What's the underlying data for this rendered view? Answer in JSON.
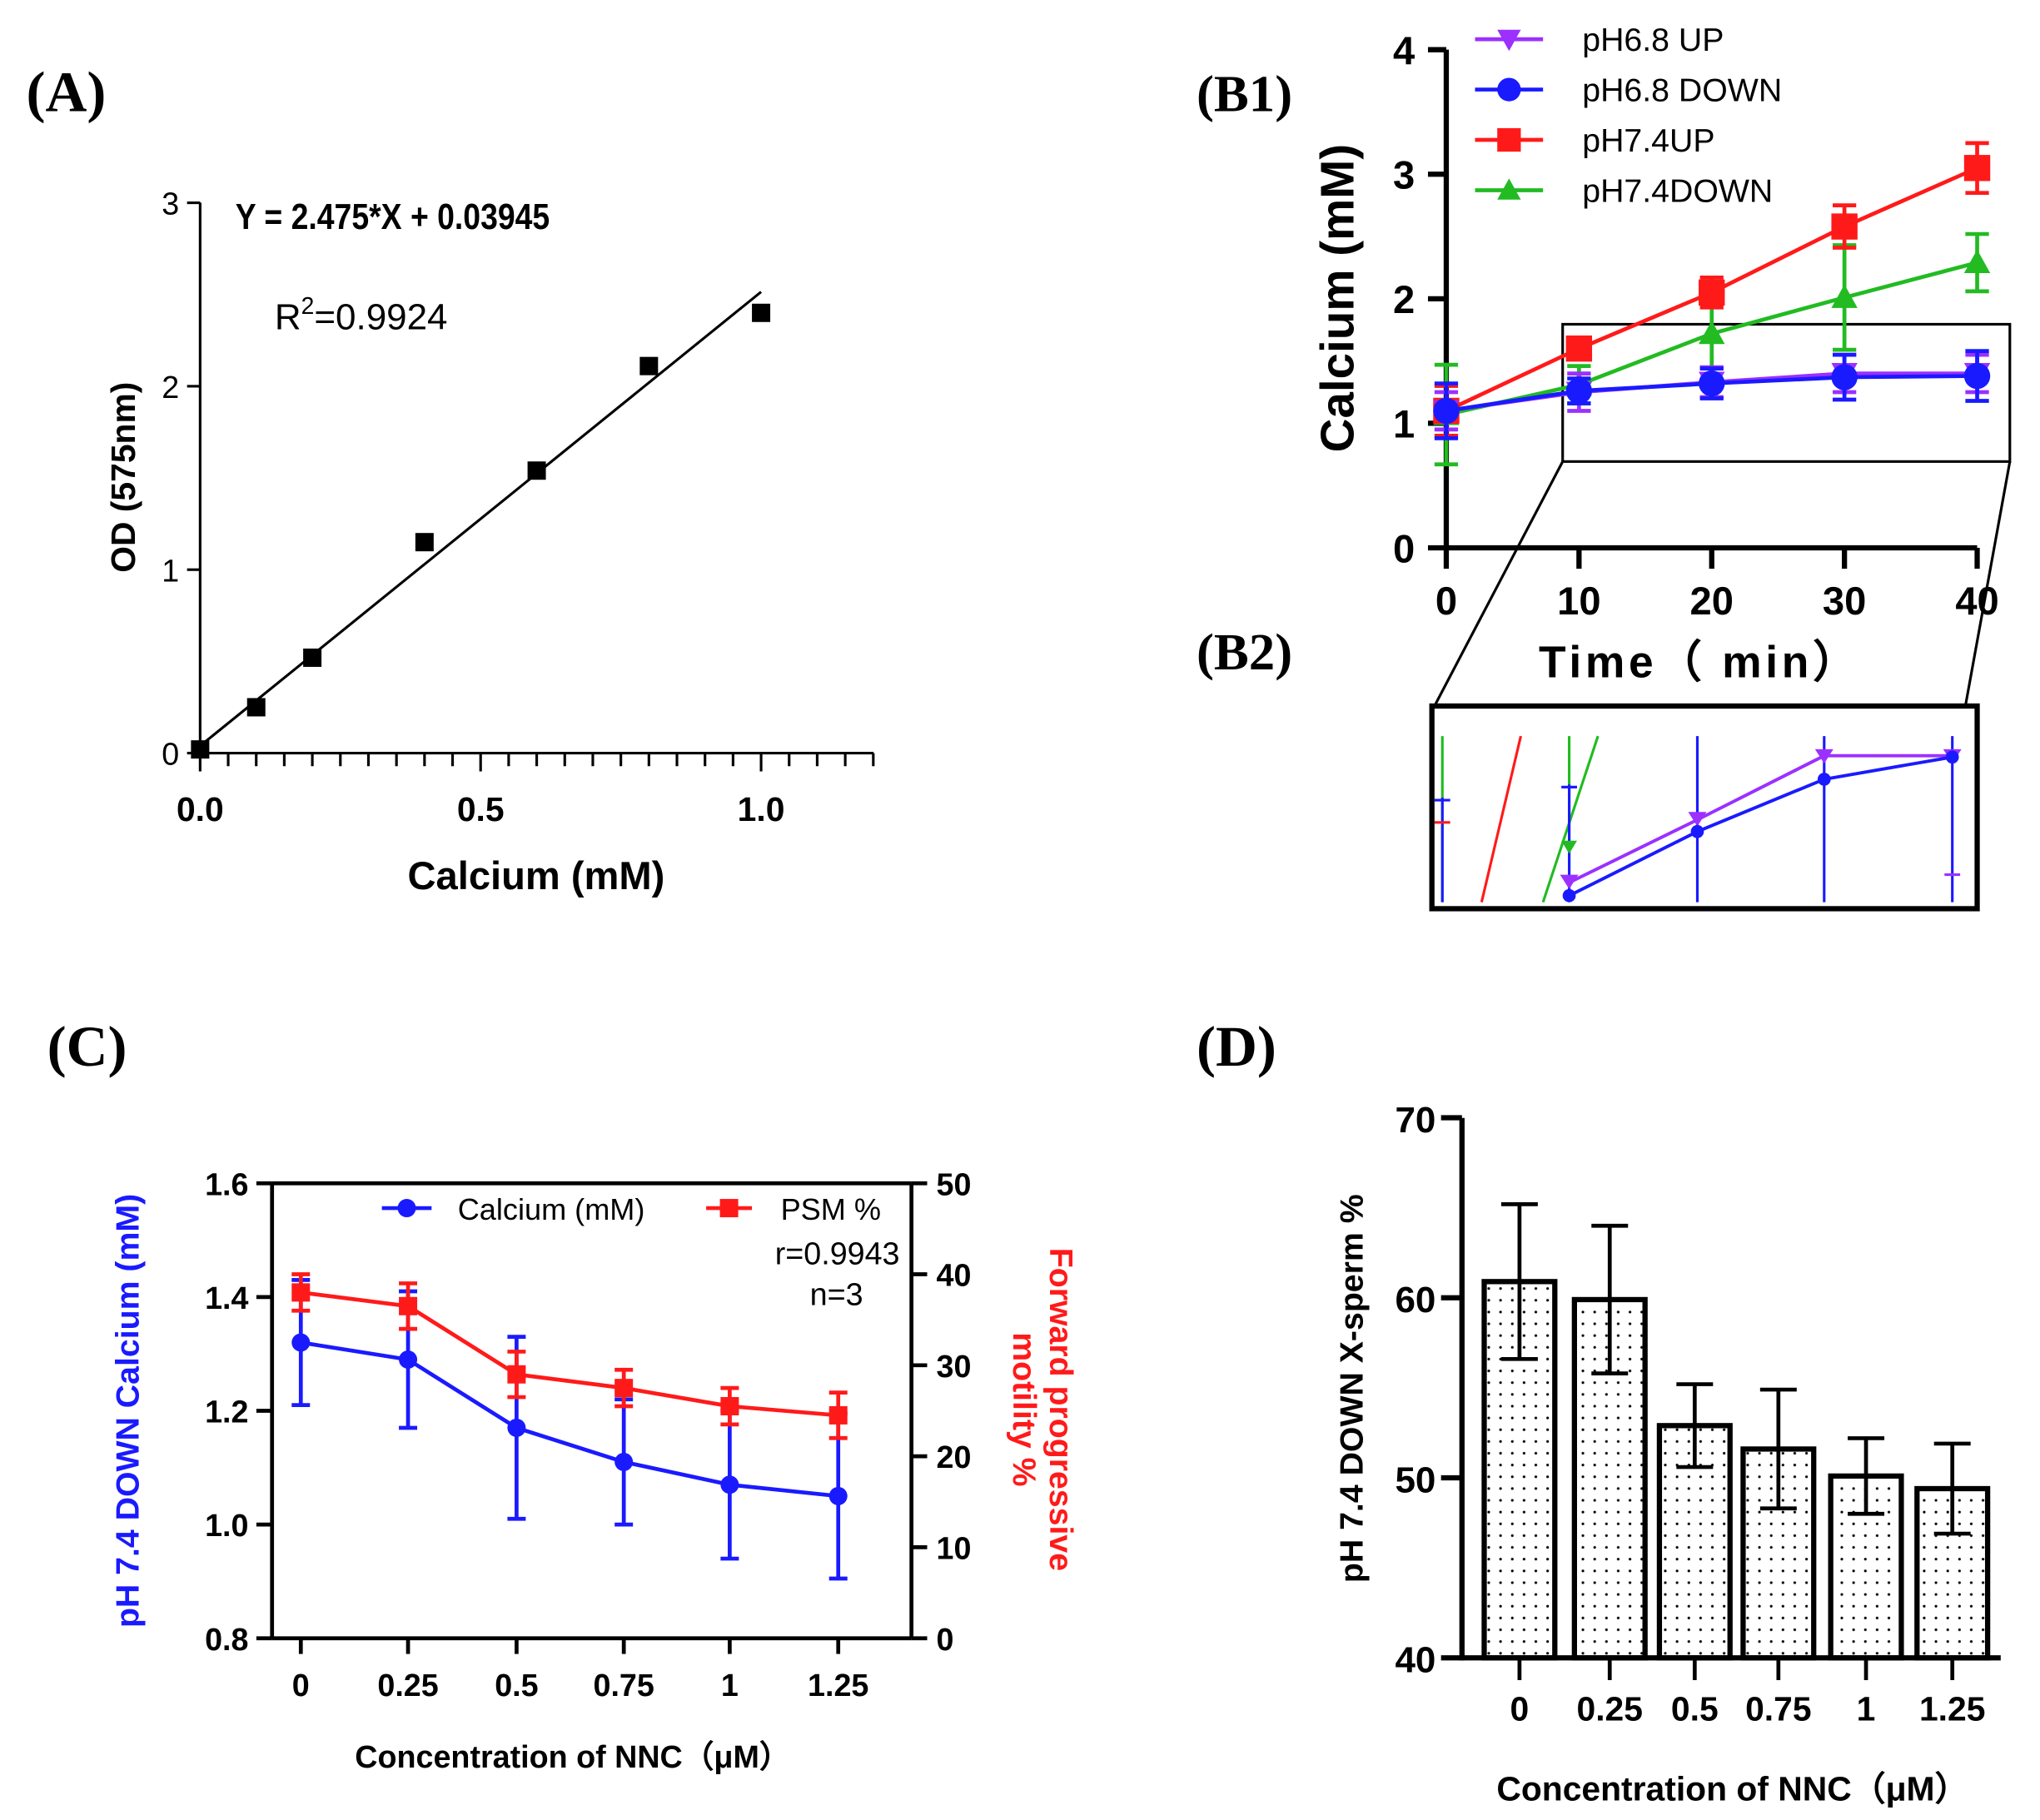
{
  "panel_labels": {
    "a": "(A)",
    "b1": "(B1)",
    "b2": "(B2)",
    "c": "(C)",
    "d": "(D)"
  },
  "colors": {
    "purple": "#9b30ff",
    "blue": "#1a1aff",
    "red": "#ff1a1a",
    "green": "#22bb22",
    "black": "#000000"
  },
  "chart_data": [
    {
      "id": "A",
      "type": "scatter",
      "xlabel": "Calcium (mM)",
      "ylabel": "OD (575nm)",
      "xlim": [
        0,
        1.2
      ],
      "ylim": [
        0,
        3
      ],
      "xticks": [
        "0.0",
        "0.5",
        "1.0"
      ],
      "yticks": [
        "0",
        "1",
        "2",
        "3"
      ],
      "x": [
        0,
        0.1,
        0.2,
        0.4,
        0.6,
        0.8,
        1.0
      ],
      "y": [
        0.02,
        0.25,
        0.52,
        1.15,
        1.54,
        2.11,
        2.4
      ],
      "fit": {
        "slope": 2.475,
        "intercept": 0.03945
      },
      "annotations": {
        "equation": "Y = 2.475*X + 0.03945",
        "r2_prefix": "R",
        "r2_sup": "2",
        "r2_value": "=0.9924"
      }
    },
    {
      "id": "B1",
      "type": "line",
      "xlabel": "Time（ min）",
      "ylabel": "Calcium (mM)",
      "xlim": [
        0,
        40
      ],
      "ylim": [
        0,
        4
      ],
      "xticks": [
        "0",
        "10",
        "20",
        "30",
        "40"
      ],
      "yticks": [
        "0",
        "1",
        "2",
        "3",
        "4"
      ],
      "x": [
        0,
        10,
        20,
        30,
        40
      ],
      "series": [
        {
          "name": "pH6.8 UP",
          "color": "#9b30ff",
          "marker": "triangle-down",
          "values": [
            1.1,
            1.25,
            1.33,
            1.4,
            1.4
          ],
          "err": [
            0.15,
            0.15,
            0.12,
            0.15,
            0.15
          ]
        },
        {
          "name": "pH6.8 DOWN",
          "color": "#1a1aff",
          "marker": "circle",
          "values": [
            1.1,
            1.26,
            1.32,
            1.37,
            1.38
          ],
          "err": [
            0.22,
            0.1,
            0.12,
            0.18,
            0.2
          ]
        },
        {
          "name": "pH7.4UP",
          "color": "#ff1a1a",
          "marker": "square",
          "values": [
            1.1,
            1.6,
            2.05,
            2.58,
            3.05
          ],
          "err": [
            0.2,
            0.05,
            0.12,
            0.17,
            0.2
          ]
        },
        {
          "name": "pH7.4DOWN",
          "color": "#22bb22",
          "marker": "triangle-up",
          "values": [
            1.07,
            1.31,
            1.72,
            2.01,
            2.29
          ],
          "err": [
            0.4,
            0.15,
            0.4,
            0.42,
            0.23
          ]
        }
      ],
      "legend": "top"
    },
    {
      "id": "C",
      "type": "line",
      "xlabel": "Concentration of NNC（μM）",
      "ylabel": "pH 7.4 DOWN Calcium (mM)",
      "ylabel_right": [
        "Forward progressive",
        "motility %"
      ],
      "categories": [
        "0",
        "0.25",
        "0.5",
        "0.75",
        "1",
        "1.25"
      ],
      "ylim": [
        0.8,
        1.6
      ],
      "ylim_right": [
        0,
        50
      ],
      "yticks": [
        "0.8",
        "1.0",
        "1.2",
        "1.4",
        "1.6"
      ],
      "yticks_right": [
        "0",
        "10",
        "20",
        "30",
        "40",
        "50"
      ],
      "series": [
        {
          "name": "Calcium (mM)",
          "axis": "left",
          "color": "#1a1aff",
          "values": [
            1.32,
            1.29,
            1.17,
            1.11,
            1.07,
            1.05
          ],
          "err": [
            0.11,
            0.12,
            0.16,
            0.11,
            0.13,
            0.145
          ]
        },
        {
          "name": "PSM %",
          "axis": "right",
          "color": "#ff1a1a",
          "values": [
            38,
            36.5,
            29,
            27.5,
            25.5,
            24.5
          ],
          "err": [
            2,
            2.5,
            2.5,
            2,
            2,
            2.5
          ]
        }
      ],
      "annotations": {
        "r": "r=0.9943",
        "n": "n=3"
      },
      "legend": "top"
    },
    {
      "id": "D",
      "type": "bar",
      "xlabel": "Concentration of NNC（μM）",
      "ylabel": "pH 7.4 DOWN X-sperm %",
      "categories": [
        "0",
        "0.25",
        "0.5",
        "0.75",
        "1",
        "1.25"
      ],
      "values": [
        60.9,
        59.9,
        52.9,
        51.6,
        50.1,
        49.4
      ],
      "err": [
        4.3,
        4.1,
        2.3,
        3.3,
        2.1,
        2.5
      ],
      "ylim": [
        40,
        70
      ],
      "yticks": [
        "40",
        "50",
        "60",
        "70"
      ]
    }
  ]
}
